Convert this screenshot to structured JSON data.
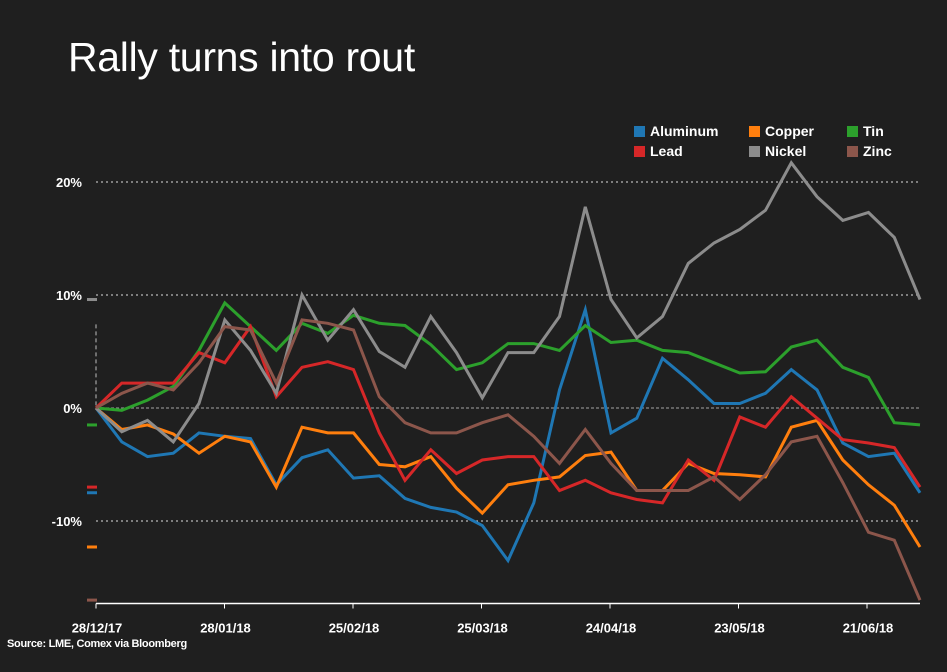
{
  "title": "Rally turns into rout",
  "source": "Source: LME, Comex via Bloomberg",
  "chart_data": {
    "type": "line",
    "title": "Rally turns into rout",
    "xlabel": "",
    "ylabel": "",
    "x_tick_labels": [
      "28/12/17",
      "28/01/18",
      "25/02/18",
      "25/03/18",
      "24/04/18",
      "23/05/18",
      "21/06/18"
    ],
    "y_tick_labels": [
      "20%",
      "10%",
      "0%",
      "-10%"
    ],
    "y_ticks": [
      20,
      10,
      0,
      -10
    ],
    "ylim": [
      -17.3,
      24
    ],
    "grid": true,
    "legend_position": "top-right",
    "sampling_note_free": true,
    "series": [
      {
        "name": "Aluminum",
        "color": "#1f77b4",
        "values": [
          0,
          -3.0,
          -4.3,
          -4.0,
          -2.2,
          -2.5,
          -2.7,
          -6.8,
          -4.4,
          -3.7,
          -6.2,
          -6.0,
          -8.0,
          -8.8,
          -9.2,
          -10.4,
          -13.5,
          -8.4,
          1.6,
          8.7,
          -2.2,
          -0.9,
          4.4,
          2.5,
          0.4,
          0.4,
          1.3,
          3.4,
          1.6,
          -3.1,
          -4.3,
          -4.0,
          -7.5
        ]
      },
      {
        "name": "Copper",
        "color": "#ff7f0e",
        "values": [
          0,
          -1.9,
          -1.5,
          -2.3,
          -4.0,
          -2.5,
          -3.0,
          -7.0,
          -1.7,
          -2.2,
          -2.2,
          -5.0,
          -5.2,
          -4.3,
          -7.1,
          -9.3,
          -6.8,
          -6.4,
          -6.1,
          -4.2,
          -3.9,
          -7.3,
          -7.3,
          -4.9,
          -5.8,
          -5.9,
          -6.1,
          -1.7,
          -1.1,
          -4.6,
          -6.8,
          -8.6,
          -12.3
        ]
      },
      {
        "name": "Tin",
        "color": "#2ca02c",
        "values": [
          0,
          -0.2,
          0.7,
          1.9,
          5.1,
          9.3,
          7.2,
          5.1,
          7.5,
          6.6,
          8.2,
          7.5,
          7.3,
          5.6,
          3.4,
          4.0,
          5.7,
          5.7,
          5.1,
          7.3,
          5.8,
          6.0,
          5.1,
          4.9,
          4.0,
          3.1,
          3.2,
          5.4,
          6.0,
          3.6,
          2.7,
          -1.3,
          -1.5
        ]
      },
      {
        "name": "Lead",
        "color": "#d62728",
        "values": [
          0,
          2.2,
          2.2,
          2.2,
          4.9,
          4.0,
          7.2,
          1.0,
          3.6,
          4.1,
          3.4,
          -2.2,
          -6.4,
          -3.7,
          -5.8,
          -4.6,
          -4.3,
          -4.3,
          -7.3,
          -6.4,
          -7.5,
          -8.1,
          -8.4,
          -4.6,
          -6.4,
          -0.8,
          -1.7,
          1.0,
          -0.9,
          -2.8,
          -3.1,
          -3.5,
          -7.0
        ]
      },
      {
        "name": "Nickel",
        "color": "#8c8c8c",
        "values": [
          0,
          -2.1,
          -1.1,
          -3.0,
          0.4,
          7.8,
          5.1,
          1.3,
          10.0,
          6.0,
          8.7,
          5.0,
          3.6,
          8.1,
          4.9,
          0.9,
          4.9,
          4.9,
          8.1,
          17.8,
          9.6,
          6.2,
          8.1,
          12.8,
          14.6,
          15.8,
          17.5,
          21.7,
          18.7,
          16.6,
          17.3,
          15.1,
          9.6
        ]
      },
      {
        "name": "Zinc",
        "color": "#8c564b",
        "values": [
          0,
          1.3,
          2.2,
          1.6,
          4.0,
          7.2,
          6.9,
          2.2,
          7.8,
          7.5,
          6.9,
          1.0,
          -1.3,
          -2.2,
          -2.2,
          -1.3,
          -0.6,
          -2.5,
          -4.9,
          -1.9,
          -4.9,
          -7.3,
          -7.3,
          -7.3,
          -6.1,
          -8.1,
          -5.9,
          -3.0,
          -2.5,
          -6.6,
          -11.0,
          -11.7,
          -17.0
        ]
      }
    ]
  }
}
